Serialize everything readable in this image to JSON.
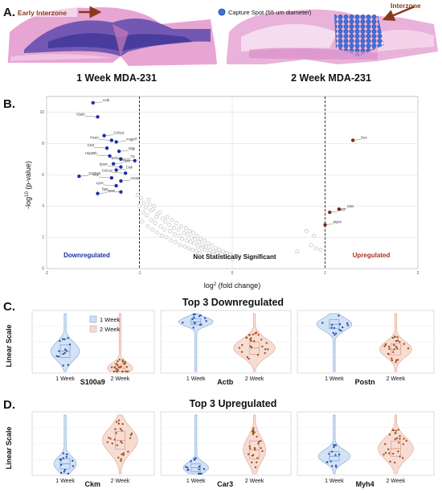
{
  "panelA": {
    "letter": "A.",
    "left_caption": "1 Week MDA-231",
    "right_caption": "2 Week MDA-231",
    "left_tag": "Early Interzone",
    "right_tag": "Interzone",
    "legend_text": "Capture Spot (55 um diameter)",
    "colors": {
      "tissue_pink": "#e79fd0",
      "tumor_blue": "#3b3aa6",
      "spot_blue": "#3b74e0",
      "arrow": "#8a3a1a"
    }
  },
  "panelB": {
    "letter": "B.",
    "chart_data": {
      "type": "scatter",
      "xlabel_base": "log",
      "xlabel_exp": "2",
      "xlabel_rest": " (fold change)",
      "ylabel_base": "-log",
      "ylabel_exp": "10",
      "ylabel_rest": " (p-value)",
      "xlim": [
        -2,
        2
      ],
      "ylim": [
        0,
        11
      ],
      "x_ticks": [
        "-2",
        "-1",
        "0",
        "1",
        "2"
      ],
      "y_ticks": [
        "0",
        "2",
        "4",
        "6",
        "8",
        "10"
      ],
      "thresholds_x": [
        -1,
        1
      ],
      "grid": true,
      "region_labels": {
        "down": "Downregulated",
        "ns": "Not Statistically Significant",
        "up": "Upregulated"
      },
      "colors": {
        "down": "#1f2ea8",
        "up": "#7a2a14",
        "ns": "#c8c8c8"
      },
      "labeled_points": [
        {
          "gene": "Actb",
          "x": -1.5,
          "y": 10.6,
          "group": "down"
        },
        {
          "gene": "H2afz",
          "x": -1.45,
          "y": 9.7,
          "group": "down"
        },
        {
          "gene": "Col1a1",
          "x": -1.38,
          "y": 8.5,
          "group": "down"
        },
        {
          "gene": "Postn",
          "x": -1.3,
          "y": 8.2,
          "group": "down"
        },
        {
          "gene": "Angptl7",
          "x": -1.25,
          "y": 8.1,
          "group": "down"
        },
        {
          "gene": "Cst3",
          "x": -1.35,
          "y": 7.7,
          "group": "down"
        },
        {
          "gene": "Mgp",
          "x": -1.22,
          "y": 7.5,
          "group": "down"
        },
        {
          "gene": "Hsp90b",
          "x": -1.32,
          "y": 7.2,
          "group": "down"
        },
        {
          "gene": "Ttc",
          "x": -1.2,
          "y": 7.0,
          "group": "down"
        },
        {
          "gene": "Eef1a1",
          "x": -1.05,
          "y": 6.9,
          "group": "down"
        },
        {
          "gene": "Rpl8",
          "x": -1.28,
          "y": 6.7,
          "group": "down"
        },
        {
          "gene": "Sparc",
          "x": -1.2,
          "y": 6.5,
          "group": "down"
        },
        {
          "gene": "Ctsk",
          "x": -1.25,
          "y": 6.3,
          "group": "down"
        },
        {
          "gene": "Col1a2",
          "x": -1.15,
          "y": 6.1,
          "group": "down"
        },
        {
          "gene": "S100a9",
          "x": -1.65,
          "y": 5.9,
          "group": "down"
        },
        {
          "gene": "Fn1",
          "x": -1.3,
          "y": 5.8,
          "group": "down"
        },
        {
          "gene": "Acta2",
          "x": -1.2,
          "y": 5.6,
          "group": "down"
        },
        {
          "gene": "Lyz2",
          "x": -1.25,
          "y": 5.3,
          "group": "down"
        },
        {
          "gene": "Apoe",
          "x": -1.45,
          "y": 4.8,
          "group": "down"
        },
        {
          "gene": "Bgn",
          "x": -1.2,
          "y": 4.9,
          "group": "down"
        },
        {
          "gene": "Ckm",
          "x": 1.15,
          "y": 3.8,
          "group": "up"
        },
        {
          "gene": "Car3",
          "x": 1.05,
          "y": 3.6,
          "group": "up"
        },
        {
          "gene": "Myh4",
          "x": 1.0,
          "y": 2.8,
          "group": "up"
        },
        {
          "gene": "Des",
          "x": 1.3,
          "y": 8.2,
          "group": "up"
        }
      ],
      "ns_points": [
        [
          -1.02,
          4.7
        ],
        [
          -0.98,
          4.5
        ],
        [
          -0.95,
          4.2
        ],
        [
          -0.9,
          4.4
        ],
        [
          -0.93,
          3.9
        ],
        [
          -0.88,
          3.7
        ],
        [
          -0.85,
          3.8
        ],
        [
          -0.8,
          3.5
        ],
        [
          -0.82,
          3.3
        ],
        [
          -0.78,
          3.6
        ],
        [
          -0.75,
          3.2
        ],
        [
          -0.72,
          3.0
        ],
        [
          -0.7,
          3.3
        ],
        [
          -0.68,
          2.8
        ],
        [
          -0.65,
          3.1
        ],
        [
          -0.63,
          2.6
        ],
        [
          -0.6,
          2.9
        ],
        [
          -0.58,
          2.5
        ],
        [
          -0.55,
          2.7
        ],
        [
          -0.52,
          2.3
        ],
        [
          -0.5,
          2.6
        ],
        [
          -0.48,
          2.2
        ],
        [
          -0.46,
          2.4
        ],
        [
          -0.44,
          2.0
        ],
        [
          -0.42,
          2.3
        ],
        [
          -0.4,
          1.9
        ],
        [
          -0.38,
          2.1
        ],
        [
          -0.36,
          1.7
        ],
        [
          -0.34,
          1.9
        ],
        [
          -0.32,
          1.5
        ],
        [
          -0.3,
          1.8
        ],
        [
          -0.28,
          1.4
        ],
        [
          -0.26,
          1.6
        ],
        [
          -0.24,
          1.2
        ],
        [
          -0.22,
          1.5
        ],
        [
          -0.2,
          1.1
        ],
        [
          -0.18,
          1.3
        ],
        [
          -0.16,
          1.0
        ],
        [
          -0.14,
          1.2
        ],
        [
          -0.12,
          0.9
        ],
        [
          -0.1,
          1.1
        ],
        [
          -0.08,
          0.8
        ],
        [
          -0.06,
          1.0
        ],
        [
          -0.04,
          0.7
        ],
        [
          -0.02,
          0.9
        ],
        [
          0.0,
          0.6
        ],
        [
          -0.92,
          3.4
        ],
        [
          -0.87,
          3.1
        ],
        [
          -0.83,
          2.9
        ],
        [
          -0.77,
          2.7
        ],
        [
          -0.73,
          2.5
        ],
        [
          -0.67,
          2.4
        ],
        [
          -0.62,
          2.2
        ],
        [
          -0.57,
          2.1
        ],
        [
          -0.54,
          1.9
        ],
        [
          -0.49,
          1.8
        ],
        [
          -0.45,
          1.7
        ],
        [
          -0.41,
          1.6
        ],
        [
          -0.37,
          1.4
        ],
        [
          -0.33,
          1.3
        ],
        [
          -0.29,
          1.2
        ],
        [
          -0.25,
          1.0
        ],
        [
          -0.21,
          0.9
        ],
        [
          -0.97,
          3.0
        ],
        [
          -0.91,
          2.7
        ],
        [
          -0.86,
          2.5
        ],
        [
          -0.81,
          2.3
        ],
        [
          -0.76,
          2.1
        ],
        [
          -0.71,
          2.0
        ],
        [
          -0.66,
          1.8
        ],
        [
          -0.61,
          1.7
        ],
        [
          -0.56,
          1.5
        ],
        [
          -0.51,
          1.4
        ],
        [
          -0.47,
          1.3
        ],
        [
          -0.43,
          1.2
        ],
        [
          -0.39,
          1.1
        ],
        [
          -0.35,
          1.0
        ],
        [
          -1.0,
          4.0
        ],
        [
          -0.96,
          3.6
        ],
        [
          -0.89,
          4.1
        ],
        [
          -0.84,
          4.0
        ],
        [
          0.85,
          1.5
        ],
        [
          0.9,
          1.3
        ],
        [
          0.95,
          1.2
        ],
        [
          0.8,
          2.4
        ],
        [
          0.88,
          2.1
        ],
        [
          0.7,
          1.1
        ]
      ]
    }
  },
  "panelC": {
    "letter": "C.",
    "title": "Top 3 Downregulated",
    "ylabel": "Linear Scale",
    "legend": [
      "1 Week",
      "2 Week"
    ],
    "genes": [
      "S100a9",
      "Actb",
      "Postn"
    ],
    "group_labels": [
      "1 Week",
      "2 Week"
    ]
  },
  "panelD": {
    "letter": "D.",
    "title": "Top 3 Upregulated",
    "ylabel": "Linear Scale",
    "genes": [
      "Ckm",
      "Car3",
      "Myh4"
    ],
    "group_labels": [
      "1 Week",
      "2 Week"
    ]
  },
  "violin_colors": {
    "week1_fill": "#cfe0f5",
    "week1_edge": "#7fa6d9",
    "week1_dot": "#2b4fb0",
    "week2_fill": "#f6d9cf",
    "week2_edge": "#e2a48f",
    "week2_dot": "#a0521f"
  }
}
